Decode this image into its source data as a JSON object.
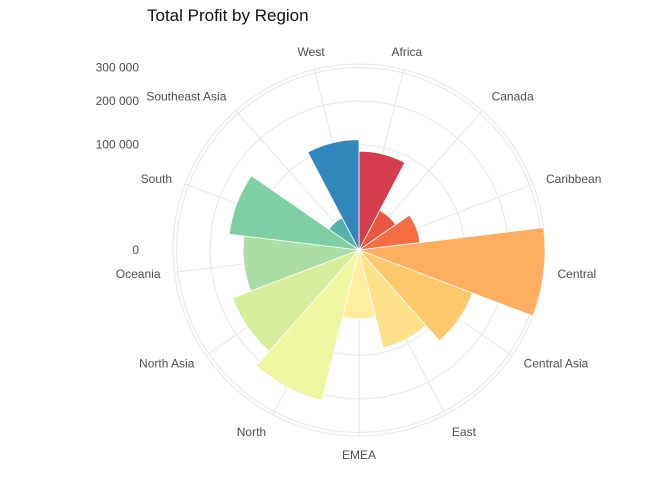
{
  "chart_data": {
    "type": "bar",
    "coord": "polar",
    "title": "Total Profit by Region",
    "xlabel": "",
    "ylabel": "",
    "categories": [
      "Africa",
      "Canada",
      "Caribbean",
      "Central",
      "Central Asia",
      "East",
      "EMEA",
      "North",
      "North Asia",
      "Oceania",
      "South",
      "Southeast Asia",
      "West"
    ],
    "values": [
      88000,
      18000,
      34000,
      312000,
      133000,
      92000,
      43000,
      216000,
      165000,
      121000,
      154000,
      12000,
      110000
    ],
    "colors": [
      "#d53e4f",
      "#e8583e",
      "#f46d43",
      "#fdae61",
      "#fdc96b",
      "#fee08b",
      "#ffeda0",
      "#eef7a0",
      "#d6ee9b",
      "#abdda4",
      "#7fcfa4",
      "#55b1aa",
      "#3288bd"
    ],
    "y_ticks": [
      0,
      100000,
      200000,
      300000
    ],
    "y_tick_labels": [
      "0",
      "100 000",
      "200 000",
      "300 000"
    ],
    "ylim": [
      0,
      312000
    ],
    "grid": true,
    "legend": "none"
  }
}
